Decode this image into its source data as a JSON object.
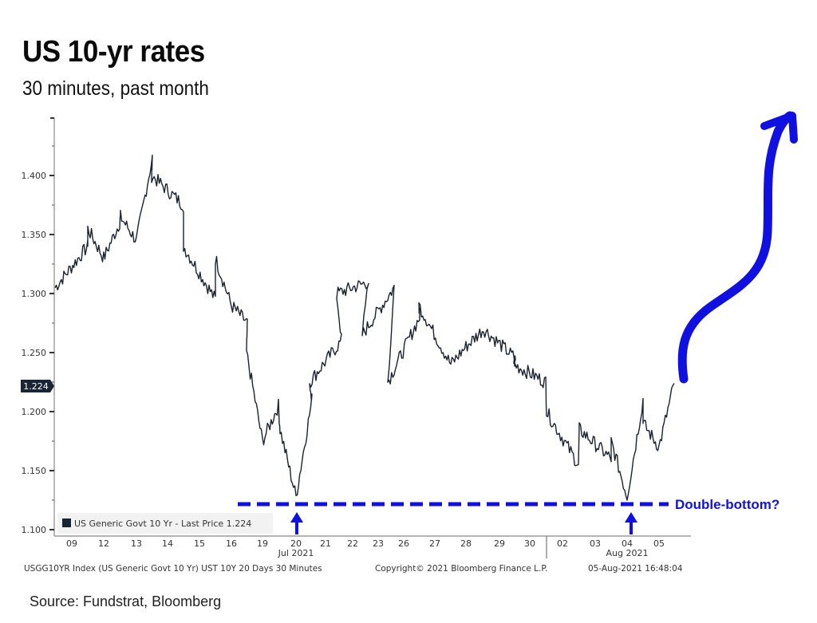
{
  "header": {
    "title": "US 10-yr rates",
    "subtitle": "30 minutes, past month"
  },
  "source": "Source: Fundstrat, Bloomberg",
  "legend": {
    "label": "US Generic Govt 10 Yr - Last Price 1.224",
    "swatch_color": "#1a2533"
  },
  "last_price_tag": "1.224",
  "footer": {
    "index_desc": "USGG10YR Index (US Generic Govt 10 Yr) UST 10Y 20 Days 30 Minutes",
    "copyright": "Copyright© 2021 Bloomberg Finance L.P.",
    "timestamp": "05-Aug-2021 16:48:04"
  },
  "annotations": {
    "double_bottom_label": "Double-bottom?",
    "annotation_color": "#1010e0"
  },
  "chart_data": {
    "type": "line",
    "title": "US 10-yr rates",
    "subtitle": "30 minutes, past month",
    "xlabel": "",
    "ylabel": "",
    "ylim": [
      1.1,
      1.42
    ],
    "yticks": [
      "1.100",
      "1.150",
      "1.200",
      "1.250",
      "1.300",
      "1.350",
      "1.400"
    ],
    "categories": [
      "09",
      "12",
      "13",
      "14",
      "15",
      "16",
      "19",
      "20",
      "21",
      "22",
      "23",
      "26",
      "27",
      "28",
      "29",
      "30",
      "02",
      "03",
      "04",
      "05"
    ],
    "month_labels": [
      {
        "label": "Jul 2021",
        "under": "20"
      },
      {
        "label": "Aug 2021",
        "under": "03/04"
      }
    ],
    "series": [
      {
        "name": "US Generic Govt 10 Yr - Last Price",
        "last": 1.224,
        "approx_points": [
          [
            "09",
            1.305
          ],
          [
            "09",
            1.34
          ],
          [
            "12",
            1.355
          ],
          [
            "12",
            1.33
          ],
          [
            "12",
            1.36
          ],
          [
            "13",
            1.365
          ],
          [
            "13",
            1.345
          ],
          [
            "13",
            1.415
          ],
          [
            "14",
            1.4
          ],
          [
            "14",
            1.375
          ],
          [
            "15",
            1.34
          ],
          [
            "15",
            1.295
          ],
          [
            "16",
            1.33
          ],
          [
            "16",
            1.29
          ],
          [
            "16",
            1.275
          ],
          [
            "19",
            1.25
          ],
          [
            "19",
            1.175
          ],
          [
            "19",
            1.205
          ],
          [
            "20",
            1.185
          ],
          [
            "20",
            1.128
          ],
          [
            "20",
            1.21
          ],
          [
            "21",
            1.225
          ],
          [
            "21",
            1.26
          ],
          [
            "22",
            1.3
          ],
          [
            "22",
            1.31
          ],
          [
            "23",
            1.265
          ],
          [
            "23",
            1.305
          ],
          [
            "26",
            1.225
          ],
          [
            "26",
            1.28
          ],
          [
            "27",
            1.29
          ],
          [
            "27",
            1.24
          ],
          [
            "28",
            1.255
          ],
          [
            "29",
            1.27
          ],
          [
            "29",
            1.245
          ],
          [
            "30",
            1.24
          ],
          [
            "30",
            1.225
          ],
          [
            "02",
            1.2
          ],
          [
            "02",
            1.155
          ],
          [
            "03",
            1.185
          ],
          [
            "03",
            1.16
          ],
          [
            "04",
            1.175
          ],
          [
            "04",
            1.128
          ],
          [
            "04",
            1.21
          ],
          [
            "05",
            1.19
          ],
          [
            "05",
            1.17
          ],
          [
            "05",
            1.224
          ]
        ]
      }
    ],
    "annotations": [
      {
        "type": "hline",
        "value": 1.127,
        "style": "dashed",
        "label": "Double-bottom?"
      },
      {
        "type": "arrow_up",
        "at": "20"
      },
      {
        "type": "arrow_up",
        "at": "04"
      },
      {
        "type": "freehand_arrow",
        "direction": "up",
        "from_x": "05"
      }
    ],
    "legend_position": "bottom-left",
    "grid": false
  }
}
